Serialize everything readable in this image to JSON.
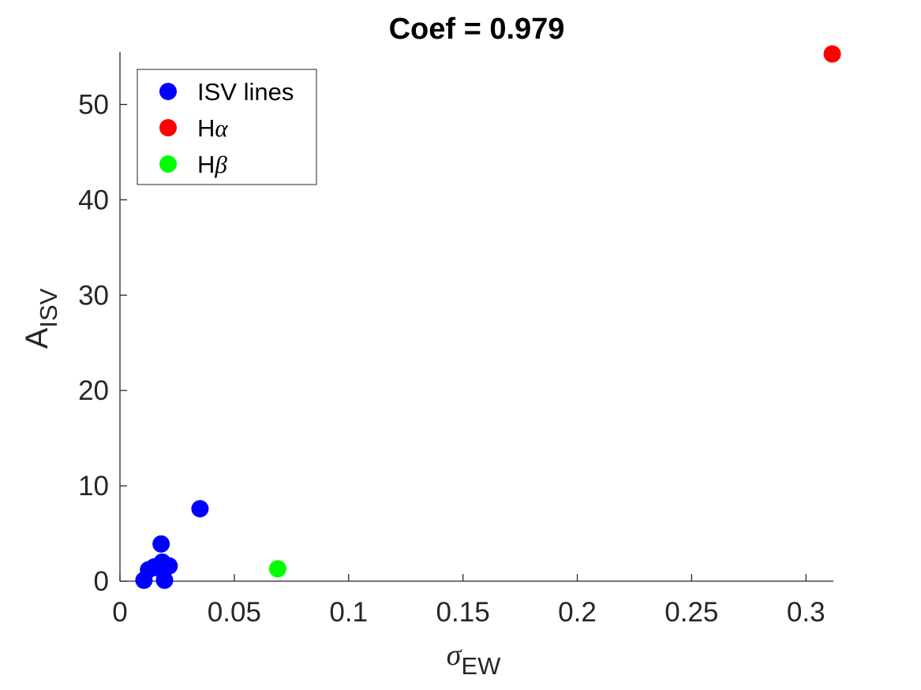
{
  "chart_data": {
    "type": "scatter",
    "title": "Coef = 0.979",
    "xlabel": {
      "main": "σ",
      "sub": "EW"
    },
    "ylabel": {
      "main": "A",
      "sub": "ISV"
    },
    "xlim": [
      0,
      0.312
    ],
    "ylim": [
      0,
      55.5
    ],
    "xticks": [
      0,
      0.05,
      0.1,
      0.15,
      0.2,
      0.25,
      0.3
    ],
    "xtick_labels": [
      "0",
      "0.05",
      "0.1",
      "0.15",
      "0.2",
      "0.25",
      "0.3"
    ],
    "yticks": [
      0,
      10,
      20,
      30,
      40,
      50
    ],
    "ytick_labels": [
      "0",
      "10",
      "20",
      "30",
      "40",
      "50"
    ],
    "grid": false,
    "legend_position": "top-left",
    "series": [
      {
        "name": "ISV lines",
        "color": "#0000ff",
        "points": [
          {
            "x": 0.0105,
            "y": 0.1
          },
          {
            "x": 0.0125,
            "y": 1.2
          },
          {
            "x": 0.015,
            "y": 1.5
          },
          {
            "x": 0.0175,
            "y": 1.3
          },
          {
            "x": 0.018,
            "y": 3.9
          },
          {
            "x": 0.0185,
            "y": 2.0
          },
          {
            "x": 0.0195,
            "y": 0.1
          },
          {
            "x": 0.0215,
            "y": 1.6
          },
          {
            "x": 0.035,
            "y": 7.6
          }
        ]
      },
      {
        "name_main": "H",
        "name_greek": "α",
        "color": "#ff0000",
        "points": [
          {
            "x": 0.3115,
            "y": 55.3
          }
        ]
      },
      {
        "name_main": "H",
        "name_greek": "β",
        "color": "#00ff00",
        "points": [
          {
            "x": 0.069,
            "y": 1.3
          }
        ]
      }
    ]
  }
}
